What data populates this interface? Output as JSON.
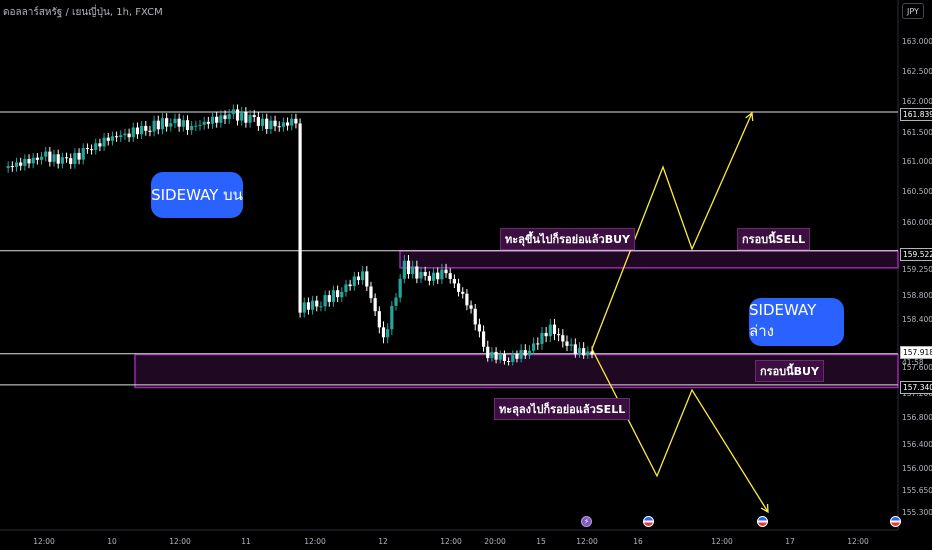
{
  "header": {
    "title": "ดอลลาร์สหรัฐ / เยนญี่ปุ่น, 1h, FXCM",
    "currency": "JPY"
  },
  "annotations": {
    "sideway_top": "SIDEWAY บน",
    "sideway_bottom": "SIDEWAY ล่าง",
    "break_up_buy": "ทะลุขึ้นไปก็รอย่อแล้วBUY",
    "sell_frame": "กรอบนี้SELL",
    "buy_frame": "กรอบนี้BUY",
    "break_down_sell": "ทะลุลงไปก็รอย่อแล้วSELL"
  },
  "price_tags": {
    "resistance": "161.839",
    "upper_zone": "159.522",
    "current": "157.918",
    "countdown": "41:58",
    "support": "157.340"
  },
  "chart_data": {
    "type": "candlestick",
    "y_axis_ticks": [
      "163.000",
      "162.500",
      "162.000",
      "161.500",
      "161.000",
      "160.500",
      "160.000",
      "159.500",
      "159.250",
      "158.800",
      "158.400",
      "158.000",
      "157.600",
      "157.200",
      "156.800",
      "156.400",
      "156.000",
      "155.650",
      "155.300"
    ],
    "x_axis_ticks": [
      "12:00",
      "10",
      "12:00",
      "11",
      "12:00",
      "12",
      "12:00",
      "20:00",
      "15",
      "12:00",
      "16",
      "12:00",
      "17",
      "12:00"
    ],
    "horizontal_levels": [
      161.839,
      159.522,
      157.918,
      157.34
    ],
    "zones": [
      {
        "name": "upper",
        "from": 159.28,
        "to": 159.52
      },
      {
        "name": "lower",
        "from": 157.3,
        "to": 157.9
      }
    ],
    "scenario_paths": [
      {
        "name": "bullish",
        "points": [
          [
            157.9,
            "now"
          ],
          [
            161.0,
            "peak1"
          ],
          [
            159.65,
            "dip"
          ],
          [
            161.8,
            "target"
          ]
        ]
      },
      {
        "name": "bearish",
        "points": [
          [
            157.9,
            "now"
          ],
          [
            156.0,
            "low1"
          ],
          [
            157.3,
            "retest"
          ],
          [
            155.35,
            "target"
          ]
        ]
      }
    ],
    "approx_close": [
      160.9,
      161.0,
      161.1,
      161.0,
      161.2,
      161.4,
      161.5,
      161.6,
      161.7,
      161.6,
      161.7,
      161.8,
      161.7,
      161.6,
      161.7,
      158.6,
      158.7,
      158.9,
      159.2,
      158.1,
      159.3,
      159.1,
      159.2,
      158.7,
      157.9,
      157.8,
      158.0,
      158.3,
      158.0,
      157.9
    ]
  }
}
